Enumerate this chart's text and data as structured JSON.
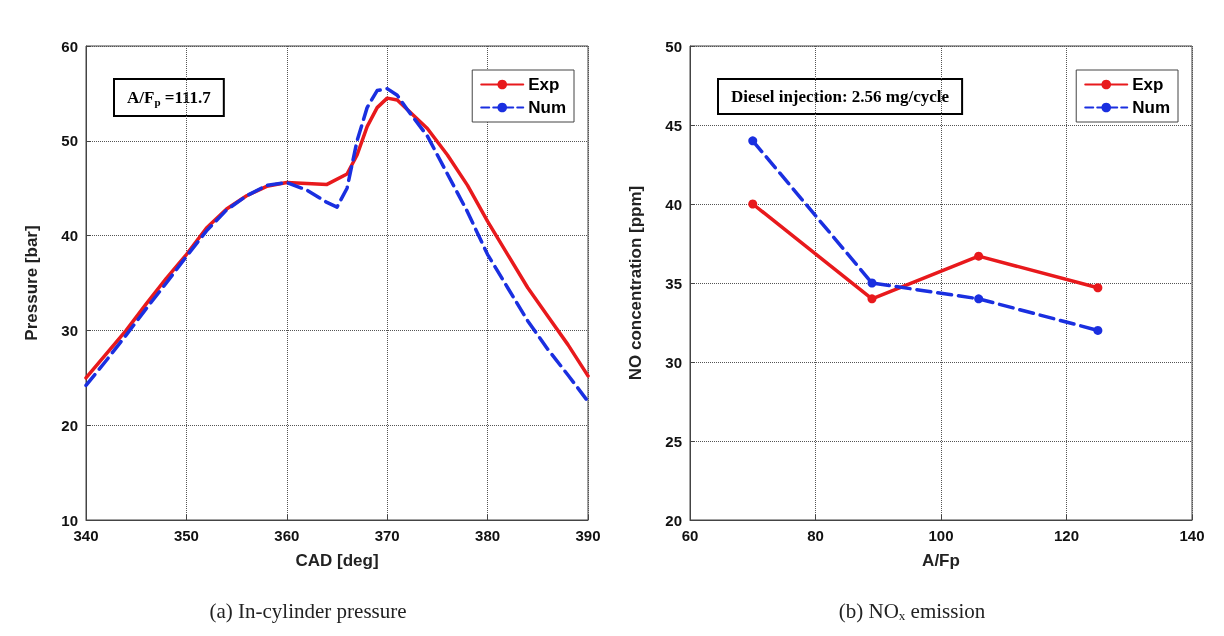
{
  "chart_data": [
    {
      "type": "line",
      "title": "(a) In-cylinder pressure",
      "xlabel": "CAD [deg]",
      "ylabel": "Pressure [bar]",
      "annotations": [
        "A/F$_{p}$ =111.7"
      ],
      "xlim": [
        340,
        390
      ],
      "xticks": [
        340,
        350,
        360,
        370,
        380,
        390
      ],
      "ylim": [
        10,
        60
      ],
      "yticks": [
        10,
        20,
        30,
        40,
        50,
        60
      ],
      "grid": true,
      "legend": "top right",
      "marker": "none",
      "series": [
        {
          "name": "Exp",
          "color": "#e8191c",
          "line_style": "solid",
          "x": [
            340,
            342,
            344,
            346,
            348,
            350,
            352,
            354,
            356,
            358,
            360,
            362,
            364,
            366,
            367,
            368,
            369,
            370,
            371,
            372,
            374,
            376,
            378,
            380,
            382,
            384,
            386,
            388,
            390
          ],
          "values": [
            25,
            27.5,
            30,
            32.8,
            35.5,
            38,
            40.8,
            42.8,
            44.2,
            45.2,
            45.6,
            45.5,
            45.4,
            46.5,
            48.5,
            51.5,
            53.5,
            54.5,
            54.3,
            53.3,
            51.3,
            48.5,
            45.3,
            41.5,
            38,
            34.5,
            31.5,
            28.5,
            25.2
          ]
        },
        {
          "name": "Num",
          "color": "#1a2fe0",
          "line_style": "dashed",
          "x": [
            340,
            342,
            344,
            346,
            348,
            350,
            352,
            354,
            356,
            358,
            360,
            362,
            364,
            365,
            366,
            367,
            368,
            369,
            370,
            371,
            372,
            374,
            376,
            378,
            380,
            382,
            384,
            386,
            388,
            390
          ],
          "values": [
            24.2,
            26.8,
            29.5,
            32.3,
            35,
            37.8,
            40.5,
            42.7,
            44.2,
            45.3,
            45.6,
            44.8,
            43.5,
            43,
            45,
            50,
            53.5,
            55.3,
            55.5,
            54.8,
            53.3,
            50.5,
            46.5,
            42.5,
            38,
            34.5,
            31,
            28,
            25.3,
            22.5
          ]
        }
      ]
    },
    {
      "type": "line",
      "title": "(b) NO$_{x}$ emission",
      "xlabel": "A/Fp",
      "ylabel": "NO concentration [ppm]",
      "annotations": [
        "Diesel injection: 2.56 mg/cycle"
      ],
      "xlim": [
        60,
        140
      ],
      "xticks": [
        60,
        80,
        100,
        120,
        140
      ],
      "ylim": [
        20,
        50
      ],
      "yticks": [
        20,
        25,
        30,
        35,
        40,
        45,
        50
      ],
      "grid": true,
      "legend": "top right",
      "marker": "circle",
      "series": [
        {
          "name": "Exp",
          "color": "#e8191c",
          "line_style": "solid",
          "x": [
            70,
            89,
            106,
            125
          ],
          "values": [
            40,
            34,
            36.7,
            34.7
          ]
        },
        {
          "name": "Num",
          "color": "#1a2fe0",
          "line_style": "dashed",
          "x": [
            70,
            89,
            106,
            125
          ],
          "values": [
            44,
            35,
            34,
            32
          ]
        }
      ]
    }
  ]
}
